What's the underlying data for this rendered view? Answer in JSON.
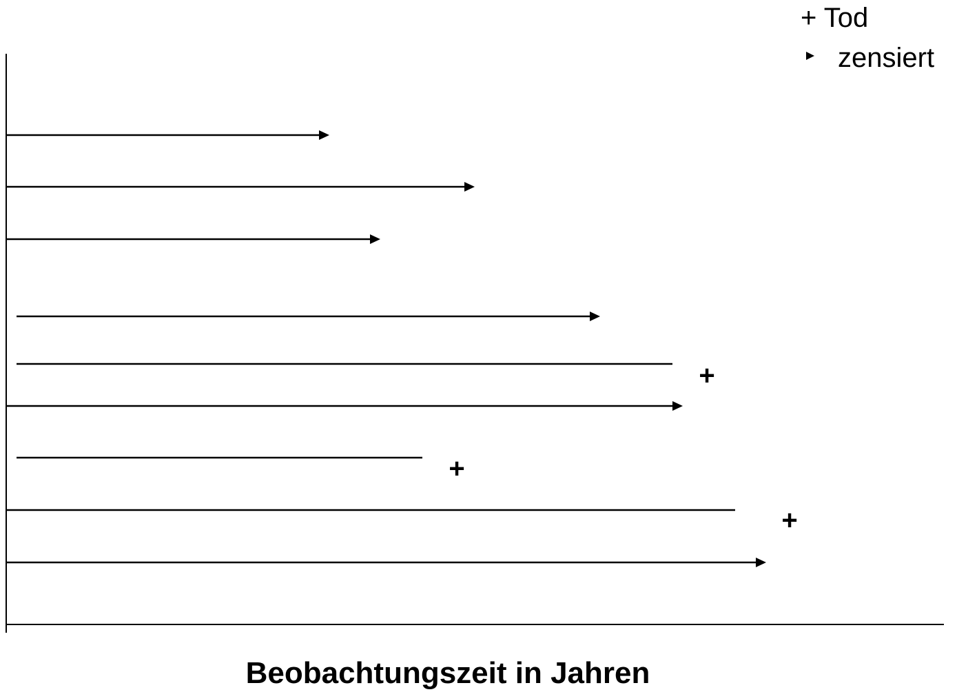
{
  "legend": {
    "death_label": "+ Tod",
    "censored_label": "zensiert",
    "death_marker": "+"
  },
  "x_axis_label": "Beobachtungszeit in Jahren",
  "colors": {
    "line": "#000000",
    "background": "#ffffff"
  },
  "chart_data": {
    "type": "timeline",
    "xlabel": "Beobachtungszeit in Jahren",
    "legend_placement": "top-right",
    "series": [
      {
        "event": "censored"
      },
      {
        "event": "censored"
      },
      {
        "event": "censored"
      },
      {
        "event": "censored"
      },
      {
        "event": "death"
      },
      {
        "event": "censored"
      },
      {
        "event": "death"
      },
      {
        "event": "death"
      },
      {
        "event": "censored"
      }
    ]
  }
}
